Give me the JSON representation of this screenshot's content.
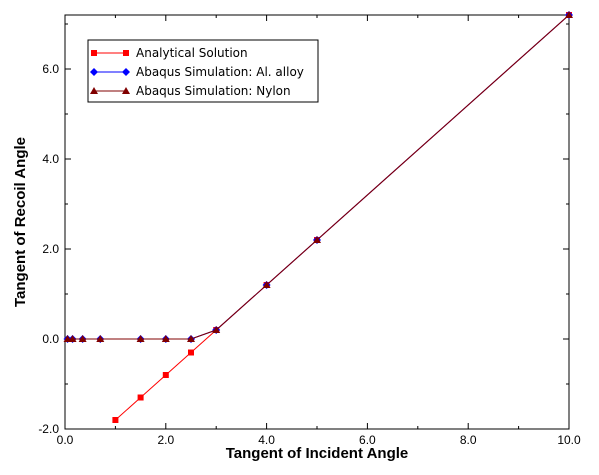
{
  "chart_data": {
    "type": "line",
    "xlabel": "Tangent of Incident Angle",
    "ylabel": "Tangent of Recoil Angle",
    "xlim": [
      0,
      10
    ],
    "ylim": [
      -2.0,
      7.2
    ],
    "xticks": [
      0.0,
      2.0,
      4.0,
      6.0,
      8.0,
      10.0
    ],
    "xtick_labels": [
      "0.0",
      "2.0",
      "4.0",
      "6.0",
      "8.0",
      "10.0"
    ],
    "yticks": [
      -2.0,
      0.0,
      2.0,
      4.0,
      6.0
    ],
    "ytick_labels": [
      "-2.0",
      "0.0",
      "2.0",
      "4.0",
      "6.0"
    ],
    "grid": false,
    "legend_position": "top-left",
    "series": [
      {
        "name": "Analytical Solution",
        "color": "#ff0000",
        "marker": "square",
        "x": [
          1.0,
          1.5,
          2.0,
          2.5,
          3.0,
          4.0,
          5.0,
          10.0
        ],
        "y": [
          -1.8,
          -1.3,
          -0.8,
          -0.3,
          0.2,
          1.2,
          2.2,
          7.2
        ]
      },
      {
        "name": "Abaqus Simulation: Al. alloy",
        "color": "#0000ff",
        "marker": "diamond",
        "x": [
          0.05,
          0.15,
          0.35,
          0.7,
          1.5,
          2.0,
          2.5,
          3.0,
          4.0,
          5.0,
          10.0
        ],
        "y": [
          0.0,
          0.0,
          0.0,
          0.0,
          0.0,
          0.0,
          0.0,
          0.2,
          1.2,
          2.2,
          7.2
        ]
      },
      {
        "name": "Abaqus Simulation: Nylon",
        "color": "#800000",
        "marker": "triangle",
        "x": [
          0.05,
          0.15,
          0.35,
          0.7,
          1.5,
          2.0,
          2.5,
          3.0,
          4.0,
          5.0,
          10.0
        ],
        "y": [
          0.0,
          0.0,
          0.0,
          0.0,
          0.0,
          0.0,
          0.0,
          0.2,
          1.2,
          2.2,
          7.2
        ]
      }
    ]
  }
}
